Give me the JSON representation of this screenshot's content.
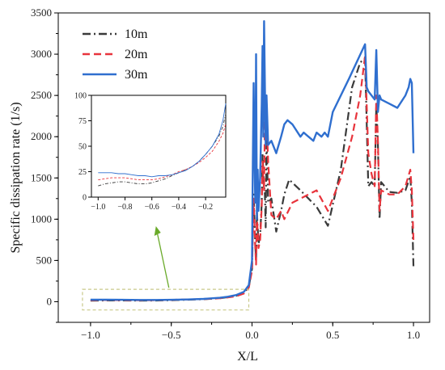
{
  "chart_data": {
    "type": "line",
    "title": "",
    "xlabel": "X/L",
    "ylabel": "Specific dissipation rate (1/s)",
    "xlim": [
      -1.2,
      1.1
    ],
    "ylim": [
      -250,
      3500
    ],
    "xticks": [
      -1.0,
      -0.5,
      0.0,
      0.5,
      1.0
    ],
    "xtick_labels": [
      "−1.0",
      "−0.5",
      "0.0",
      "0.5",
      "1.0"
    ],
    "yticks": [
      0,
      500,
      1000,
      1500,
      2000,
      2500,
      3000,
      3500
    ],
    "ytick_labels": [
      "0",
      "500",
      "1000",
      "1500",
      "2000",
      "2500",
      "3000",
      "3500"
    ],
    "legend_position": "top-left",
    "series": [
      {
        "name": "10m",
        "color": "#3a3a3a",
        "dash": "dash-dot",
        "x": [
          -1.0,
          -0.9,
          -0.8,
          -0.7,
          -0.6,
          -0.5,
          -0.4,
          -0.3,
          -0.2,
          -0.15,
          -0.1,
          -0.05,
          -0.02,
          0.0,
          0.005,
          0.01,
          0.015,
          0.02,
          0.025,
          0.03,
          0.035,
          0.04,
          0.05,
          0.06,
          0.065,
          0.07,
          0.075,
          0.08,
          0.085,
          0.09,
          0.1,
          0.12,
          0.15,
          0.18,
          0.2,
          0.23,
          0.3,
          0.4,
          0.47,
          0.55,
          0.62,
          0.67,
          0.7,
          0.72,
          0.74,
          0.76,
          0.77,
          0.78,
          0.79,
          0.8,
          0.85,
          0.9,
          0.95,
          0.98,
          0.99,
          1.0
        ],
        "y": [
          12,
          15,
          15,
          13,
          14,
          18,
          24,
          30,
          42,
          55,
          70,
          110,
          180,
          400,
          900,
          1300,
          1000,
          700,
          500,
          1100,
          900,
          700,
          800,
          1200,
          1800,
          1600,
          1400,
          1300,
          900,
          2000,
          1200,
          1250,
          850,
          1100,
          1300,
          1480,
          1350,
          1150,
          920,
          1600,
          2600,
          2900,
          2950,
          1400,
          1450,
          1400,
          2400,
          1900,
          1000,
          1450,
          1330,
          1320,
          1350,
          1520,
          1200,
          430
        ]
      },
      {
        "name": "20m",
        "color": "#e8343c",
        "dash": "dash",
        "x": [
          -1.0,
          -0.9,
          -0.8,
          -0.7,
          -0.6,
          -0.5,
          -0.4,
          -0.3,
          -0.2,
          -0.15,
          -0.1,
          -0.05,
          -0.02,
          0.0,
          0.005,
          0.01,
          0.015,
          0.02,
          0.025,
          0.03,
          0.035,
          0.04,
          0.05,
          0.06,
          0.065,
          0.07,
          0.075,
          0.08,
          0.085,
          0.09,
          0.1,
          0.12,
          0.15,
          0.18,
          0.2,
          0.25,
          0.3,
          0.4,
          0.47,
          0.55,
          0.62,
          0.67,
          0.7,
          0.72,
          0.74,
          0.76,
          0.77,
          0.78,
          0.79,
          0.8,
          0.85,
          0.9,
          0.95,
          0.98,
          0.99,
          1.0
        ],
        "y": [
          18,
          20,
          19,
          17,
          18,
          22,
          27,
          32,
          42,
          52,
          65,
          100,
          170,
          380,
          850,
          1250,
          950,
          650,
          450,
          1050,
          850,
          650,
          750,
          1150,
          1700,
          1500,
          1350,
          2200,
          1900,
          2250,
          1700,
          1050,
          1000,
          1100,
          1000,
          1200,
          1250,
          1350,
          1100,
          1500,
          2000,
          2500,
          2980,
          1800,
          1550,
          1400,
          2500,
          1950,
          1100,
          1350,
          1300,
          1300,
          1400,
          1600,
          1350,
          750
        ]
      },
      {
        "name": "30m",
        "color": "#2f6fcf",
        "dash": "solid",
        "x": [
          -1.0,
          -0.9,
          -0.8,
          -0.7,
          -0.6,
          -0.5,
          -0.4,
          -0.3,
          -0.2,
          -0.15,
          -0.1,
          -0.05,
          -0.02,
          0.0,
          0.005,
          0.01,
          0.015,
          0.02,
          0.025,
          0.03,
          0.035,
          0.04,
          0.05,
          0.06,
          0.065,
          0.07,
          0.075,
          0.08,
          0.085,
          0.09,
          0.1,
          0.12,
          0.15,
          0.18,
          0.2,
          0.22,
          0.25,
          0.3,
          0.32,
          0.35,
          0.38,
          0.4,
          0.43,
          0.45,
          0.47,
          0.5,
          0.6,
          0.7,
          0.71,
          0.72,
          0.74,
          0.76,
          0.77,
          0.78,
          0.79,
          0.8,
          0.85,
          0.9,
          0.95,
          0.97,
          0.98,
          0.99,
          1.0
        ],
        "y": [
          24,
          24,
          23,
          21,
          21,
          23,
          27,
          34,
          48,
          60,
          80,
          120,
          200,
          500,
          1700,
          2650,
          1800,
          1200,
          3000,
          1000,
          1600,
          1100,
          1500,
          2400,
          3100,
          2000,
          3400,
          2600,
          1900,
          2500,
          1900,
          1950,
          1800,
          2000,
          2150,
          2200,
          2150,
          2000,
          2050,
          2000,
          1950,
          2050,
          2000,
          2050,
          2000,
          2300,
          2700,
          3120,
          2600,
          2550,
          2500,
          2450,
          3050,
          2300,
          2500,
          2450,
          2400,
          2350,
          2500,
          2600,
          2700,
          2650,
          1800
        ]
      }
    ],
    "inset": {
      "xlim": [
        -1.05,
        -0.05
      ],
      "ylim": [
        0,
        100
      ],
      "xticks": [
        -1.0,
        -0.8,
        -0.6,
        -0.4,
        -0.2
      ],
      "xtick_labels": [
        "−1.0",
        "−0.8",
        "−0.6",
        "−0.4",
        "−0.2"
      ],
      "yticks": [
        0,
        25,
        50,
        75,
        100
      ],
      "ytick_labels": [
        "0",
        "25",
        "50",
        "75",
        "100"
      ],
      "series": [
        {
          "name": "10m",
          "x": [
            -1.0,
            -0.95,
            -0.9,
            -0.85,
            -0.8,
            -0.75,
            -0.7,
            -0.65,
            -0.6,
            -0.55,
            -0.5,
            -0.45,
            -0.4,
            -0.35,
            -0.3,
            -0.25,
            -0.2,
            -0.15,
            -0.1,
            -0.07,
            -0.05
          ],
          "y": [
            11,
            13,
            14,
            15,
            15,
            14,
            13,
            13,
            14,
            16,
            18,
            21,
            24,
            27,
            30,
            35,
            42,
            50,
            60,
            70,
            82
          ]
        },
        {
          "name": "20m",
          "x": [
            -1.0,
            -0.95,
            -0.9,
            -0.85,
            -0.8,
            -0.75,
            -0.7,
            -0.65,
            -0.6,
            -0.55,
            -0.5,
            -0.45,
            -0.4,
            -0.35,
            -0.3,
            -0.25,
            -0.2,
            -0.15,
            -0.1,
            -0.07,
            -0.05
          ],
          "y": [
            17,
            18,
            19,
            19,
            19,
            18,
            17,
            17,
            17,
            18,
            20,
            22,
            25,
            27,
            30,
            34,
            39,
            45,
            55,
            63,
            72
          ]
        },
        {
          "name": "30m",
          "x": [
            -1.0,
            -0.95,
            -0.9,
            -0.85,
            -0.8,
            -0.75,
            -0.7,
            -0.65,
            -0.6,
            -0.55,
            -0.5,
            -0.45,
            -0.4,
            -0.35,
            -0.3,
            -0.25,
            -0.2,
            -0.15,
            -0.1,
            -0.07,
            -0.05
          ],
          "y": [
            24,
            24,
            24,
            23,
            23,
            22,
            21,
            21,
            20,
            21,
            21,
            22,
            24,
            26,
            30,
            35,
            42,
            50,
            62,
            76,
            92
          ]
        }
      ]
    }
  }
}
